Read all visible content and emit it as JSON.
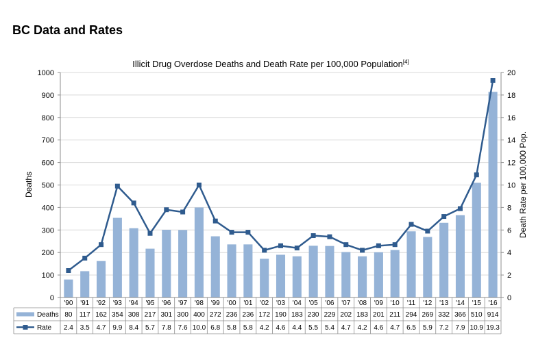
{
  "heading": "BC Data and Rates",
  "chart_data": {
    "type": "bar",
    "title": "Illicit Drug Overdose Deaths and Death Rate per 100,000 Population",
    "title_footnote": "[4]",
    "ylabel": "Deaths",
    "y2label": "Death Rate per 100,000 Pop.",
    "ylim": [
      0,
      1000
    ],
    "y2lim": [
      0,
      20
    ],
    "yticks": [
      0,
      100,
      200,
      300,
      400,
      500,
      600,
      700,
      800,
      900,
      1000
    ],
    "y2ticks": [
      0,
      2,
      4,
      6,
      8,
      10,
      12,
      14,
      16,
      18,
      20
    ],
    "grid": true,
    "legend": "data-table",
    "data_table": true,
    "categories": [
      "'90",
      "'91",
      "'92",
      "'93",
      "'94",
      "'95",
      "'96",
      "'97",
      "'98",
      "'99",
      "'00",
      "'01",
      "'02",
      "'03",
      "'04",
      "'05",
      "'06",
      "'07",
      "'08",
      "'09",
      "'10",
      "'11",
      "'12",
      "'13",
      "'14",
      "'15",
      "'16"
    ],
    "series": [
      {
        "name": "Deaths",
        "type": "bar",
        "axis": "left",
        "color": "#95B3D7",
        "values": [
          80,
          117,
          162,
          354,
          308,
          217,
          301,
          300,
          400,
          272,
          236,
          236,
          172,
          190,
          183,
          230,
          229,
          202,
          183,
          201,
          211,
          294,
          269,
          332,
          366,
          510,
          914
        ]
      },
      {
        "name": "Rate",
        "type": "line",
        "axis": "right",
        "color": "#2F5B8E",
        "values": [
          2.4,
          3.5,
          4.7,
          9.9,
          8.4,
          5.7,
          7.8,
          7.6,
          10.0,
          6.8,
          5.8,
          5.8,
          4.2,
          4.6,
          4.4,
          5.5,
          5.4,
          4.7,
          4.2,
          4.6,
          4.7,
          6.5,
          5.9,
          7.2,
          7.9,
          10.9,
          19.3
        ]
      }
    ]
  }
}
